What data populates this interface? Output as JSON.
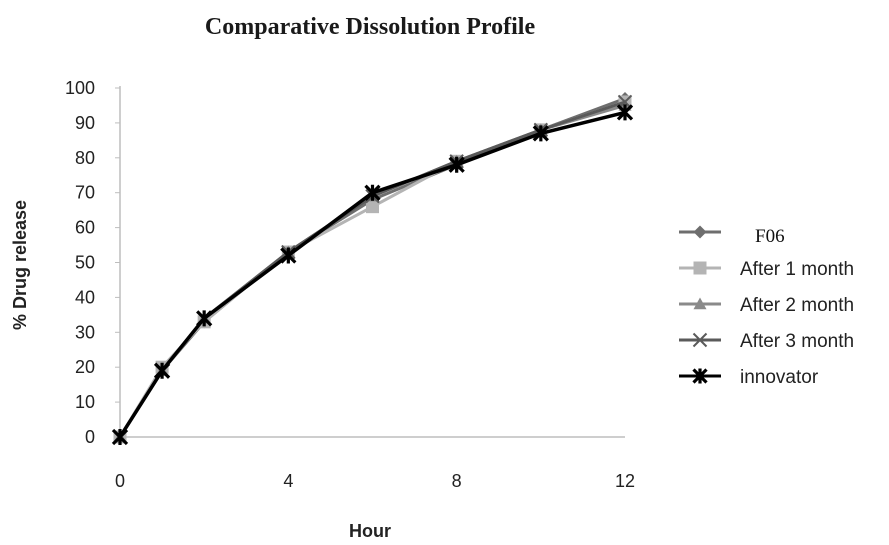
{
  "chart_data": {
    "type": "line",
    "title": "Comparative Dissolution Profile",
    "xlabel": "Hour",
    "ylabel": "% Drug release",
    "xlim": [
      0,
      12
    ],
    "ylim": [
      0,
      100
    ],
    "x_ticks": [
      0,
      4,
      8,
      12
    ],
    "y_ticks": [
      0,
      10,
      20,
      30,
      40,
      50,
      60,
      70,
      80,
      90,
      100
    ],
    "x": [
      0,
      1,
      2,
      4,
      6,
      8,
      10,
      12
    ],
    "grid": false,
    "legend_position": "right",
    "series": [
      {
        "name": "F06",
        "color": "#6e6e6e",
        "marker": "diamond",
        "values": [
          0,
          19,
          33,
          53,
          68,
          78,
          88,
          97
        ]
      },
      {
        "name": "After 1 month",
        "color": "#b4b4b4",
        "marker": "square",
        "values": [
          0,
          20,
          33,
          53,
          66,
          79,
          88,
          96
        ]
      },
      {
        "name": "After 2 month",
        "color": "#8a8a8a",
        "marker": "triangle",
        "values": [
          0,
          19,
          34,
          53,
          69,
          79,
          88,
          95
        ]
      },
      {
        "name": "After 3 month",
        "color": "#5a5a5a",
        "marker": "x",
        "values": [
          0,
          19,
          34,
          53,
          69,
          79,
          88,
          96
        ]
      },
      {
        "name": "innovator",
        "color": "#000000",
        "marker": "star-x",
        "values": [
          0,
          19,
          34,
          52,
          70,
          78,
          87,
          93
        ]
      }
    ]
  }
}
